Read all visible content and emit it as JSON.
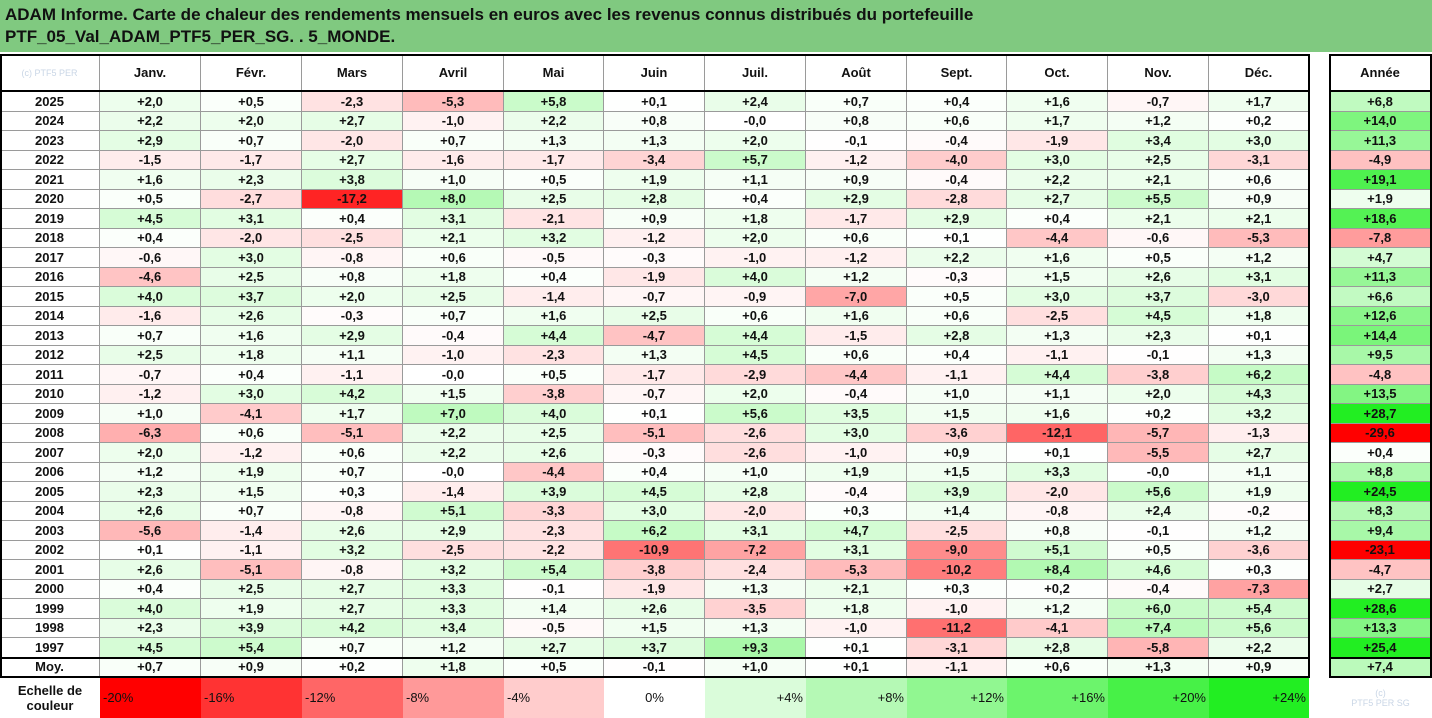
{
  "title_lines": [
    "ADAM Informe. Carte de chaleur des rendements mensuels en euros avec les revenus connus distribués du portefeuille",
    "PTF_05_Val_ADAM_PTF5_PER_SG. . 5_MONDE."
  ],
  "chart_data": {
    "type": "heatmap",
    "corner_watermark": "(c) PTF5 PER",
    "months": [
      "Janv.",
      "Févr.",
      "Mars",
      "Avril",
      "Mai",
      "Juin",
      "Juil.",
      "Août",
      "Sept.",
      "Oct.",
      "Nov.",
      "Déc."
    ],
    "year_column_label": "Année",
    "rows": [
      {
        "year": "2025",
        "values": [
          "+2,0",
          "+0,5",
          "-2,3",
          "-5,3",
          "+5,8",
          "+0,1",
          "+2,4",
          "+0,7",
          "+0,4",
          "+1,6",
          "-0,7",
          "+1,7"
        ],
        "annual": "+6,8"
      },
      {
        "year": "2024",
        "values": [
          "+2,2",
          "+2,0",
          "+2,7",
          "-1,0",
          "+2,2",
          "+0,8",
          "-0,0",
          "+0,8",
          "+0,6",
          "+1,7",
          "+1,2",
          "+0,2"
        ],
        "annual": "+14,0"
      },
      {
        "year": "2023",
        "values": [
          "+2,9",
          "+0,7",
          "-2,0",
          "+0,7",
          "+1,3",
          "+1,3",
          "+2,0",
          "-0,1",
          "-0,4",
          "-1,9",
          "+3,4",
          "+3,0"
        ],
        "annual": "+11,3"
      },
      {
        "year": "2022",
        "values": [
          "-1,5",
          "-1,7",
          "+2,7",
          "-1,6",
          "-1,7",
          "-3,4",
          "+5,7",
          "-1,2",
          "-4,0",
          "+3,0",
          "+2,5",
          "-3,1"
        ],
        "annual": "-4,9"
      },
      {
        "year": "2021",
        "values": [
          "+1,6",
          "+2,3",
          "+3,8",
          "+1,0",
          "+0,5",
          "+1,9",
          "+1,1",
          "+0,9",
          "-0,4",
          "+2,2",
          "+2,1",
          "+0,6"
        ],
        "annual": "+19,1"
      },
      {
        "year": "2020",
        "values": [
          "+0,5",
          "-2,7",
          "-17,2",
          "+8,0",
          "+2,5",
          "+2,8",
          "+0,4",
          "+2,9",
          "-2,8",
          "+2,7",
          "+5,5",
          "+0,9"
        ],
        "annual": "+1,9"
      },
      {
        "year": "2019",
        "values": [
          "+4,5",
          "+3,1",
          "+0,4",
          "+3,1",
          "-2,1",
          "+0,9",
          "+1,8",
          "-1,7",
          "+2,9",
          "+0,4",
          "+2,1",
          "+2,1"
        ],
        "annual": "+18,6"
      },
      {
        "year": "2018",
        "values": [
          "+0,4",
          "-2,0",
          "-2,5",
          "+2,1",
          "+3,2",
          "-1,2",
          "+2,0",
          "+0,6",
          "+0,1",
          "-4,4",
          "-0,6",
          "-5,3"
        ],
        "annual": "-7,8"
      },
      {
        "year": "2017",
        "values": [
          "-0,6",
          "+3,0",
          "-0,8",
          "+0,6",
          "-0,5",
          "-0,3",
          "-1,0",
          "-1,2",
          "+2,2",
          "+1,6",
          "+0,5",
          "+1,2"
        ],
        "annual": "+4,7"
      },
      {
        "year": "2016",
        "values": [
          "-4,6",
          "+2,5",
          "+0,8",
          "+1,8",
          "+0,4",
          "-1,9",
          "+4,0",
          "+1,2",
          "-0,3",
          "+1,5",
          "+2,6",
          "+3,1"
        ],
        "annual": "+11,3"
      },
      {
        "year": "2015",
        "values": [
          "+4,0",
          "+3,7",
          "+2,0",
          "+2,5",
          "-1,4",
          "-0,7",
          "-0,9",
          "-7,0",
          "+0,5",
          "+3,0",
          "+3,7",
          "-3,0"
        ],
        "annual": "+6,6"
      },
      {
        "year": "2014",
        "values": [
          "-1,6",
          "+2,6",
          "-0,3",
          "+0,7",
          "+1,6",
          "+2,5",
          "+0,6",
          "+1,6",
          "+0,6",
          "-2,5",
          "+4,5",
          "+1,8"
        ],
        "annual": "+12,6"
      },
      {
        "year": "2013",
        "values": [
          "+0,7",
          "+1,6",
          "+2,9",
          "-0,4",
          "+4,4",
          "-4,7",
          "+4,4",
          "-1,5",
          "+2,8",
          "+1,3",
          "+2,3",
          "+0,1"
        ],
        "annual": "+14,4"
      },
      {
        "year": "2012",
        "values": [
          "+2,5",
          "+1,8",
          "+1,1",
          "-1,0",
          "-2,3",
          "+1,3",
          "+4,5",
          "+0,6",
          "+0,4",
          "-1,1",
          "-0,1",
          "+1,3"
        ],
        "annual": "+9,5"
      },
      {
        "year": "2011",
        "values": [
          "-0,7",
          "+0,4",
          "-1,1",
          "-0,0",
          "+0,5",
          "-1,7",
          "-2,9",
          "-4,4",
          "-1,1",
          "+4,4",
          "-3,8",
          "+6,2"
        ],
        "annual": "-4,8"
      },
      {
        "year": "2010",
        "values": [
          "-1,2",
          "+3,0",
          "+4,2",
          "+1,5",
          "-3,8",
          "-0,7",
          "+2,0",
          "-0,4",
          "+1,0",
          "+1,1",
          "+2,0",
          "+4,3"
        ],
        "annual": "+13,5"
      },
      {
        "year": "2009",
        "values": [
          "+1,0",
          "-4,1",
          "+1,7",
          "+7,0",
          "+4,0",
          "+0,1",
          "+5,6",
          "+3,5",
          "+1,5",
          "+1,6",
          "+0,2",
          "+3,2"
        ],
        "annual": "+28,7"
      },
      {
        "year": "2008",
        "values": [
          "-6,3",
          "+0,6",
          "-5,1",
          "+2,2",
          "+2,5",
          "-5,1",
          "-2,6",
          "+3,0",
          "-3,6",
          "-12,1",
          "-5,7",
          "-1,3"
        ],
        "annual": "-29,6"
      },
      {
        "year": "2007",
        "values": [
          "+2,0",
          "-1,2",
          "+0,6",
          "+2,2",
          "+2,6",
          "-0,3",
          "-2,6",
          "-1,0",
          "+0,9",
          "+0,1",
          "-5,5",
          "+2,7"
        ],
        "annual": "+0,4"
      },
      {
        "year": "2006",
        "values": [
          "+1,2",
          "+1,9",
          "+0,7",
          "-0,0",
          "-4,4",
          "+0,4",
          "+1,0",
          "+1,9",
          "+1,5",
          "+3,3",
          "-0,0",
          "+1,1"
        ],
        "annual": "+8,8"
      },
      {
        "year": "2005",
        "values": [
          "+2,3",
          "+1,5",
          "+0,3",
          "-1,4",
          "+3,9",
          "+4,5",
          "+2,8",
          "-0,4",
          "+3,9",
          "-2,0",
          "+5,6",
          "+1,9"
        ],
        "annual": "+24,5"
      },
      {
        "year": "2004",
        "values": [
          "+2,6",
          "+0,7",
          "-0,8",
          "+5,1",
          "-3,3",
          "+3,0",
          "-2,0",
          "+0,3",
          "+1,4",
          "-0,8",
          "+2,4",
          "-0,2"
        ],
        "annual": "+8,3"
      },
      {
        "year": "2003",
        "values": [
          "-5,6",
          "-1,4",
          "+2,6",
          "+2,9",
          "-2,3",
          "+6,2",
          "+3,1",
          "+4,7",
          "-2,5",
          "+0,8",
          "-0,1",
          "+1,2"
        ],
        "annual": "+9,4"
      },
      {
        "year": "2002",
        "values": [
          "+0,1",
          "-1,1",
          "+3,2",
          "-2,5",
          "-2,2",
          "-10,9",
          "-7,2",
          "+3,1",
          "-9,0",
          "+5,1",
          "+0,5",
          "-3,6"
        ],
        "annual": "-23,1"
      },
      {
        "year": "2001",
        "values": [
          "+2,6",
          "-5,1",
          "-0,8",
          "+3,2",
          "+5,4",
          "-3,8",
          "-2,4",
          "-5,3",
          "-10,2",
          "+8,4",
          "+4,6",
          "+0,3"
        ],
        "annual": "-4,7"
      },
      {
        "year": "2000",
        "values": [
          "+0,4",
          "+2,5",
          "+2,7",
          "+3,3",
          "-0,1",
          "-1,9",
          "+1,3",
          "+2,1",
          "+0,3",
          "+0,2",
          "-0,4",
          "-7,3"
        ],
        "annual": "+2,7"
      },
      {
        "year": "1999",
        "values": [
          "+4,0",
          "+1,9",
          "+2,7",
          "+3,3",
          "+1,4",
          "+2,6",
          "-3,5",
          "+1,8",
          "-1,0",
          "+1,2",
          "+6,0",
          "+5,4"
        ],
        "annual": "+28,6"
      },
      {
        "year": "1998",
        "values": [
          "+2,3",
          "+3,9",
          "+4,2",
          "+3,4",
          "-0,5",
          "+1,5",
          "+1,3",
          "-1,0",
          "-11,2",
          "-4,1",
          "+7,4",
          "+5,6"
        ],
        "annual": "+13,3"
      },
      {
        "year": "1997",
        "values": [
          "+4,5",
          "+5,4",
          "+0,7",
          "+1,2",
          "+2,7",
          "+3,7",
          "+9,3",
          "+0,1",
          "-3,1",
          "+2,8",
          "-5,8",
          "+2,2"
        ],
        "annual": "+25,4"
      }
    ],
    "average": {
      "label": "Moy.",
      "values": [
        "+0,7",
        "+0,9",
        "+0,2",
        "+1,8",
        "+0,5",
        "-0,1",
        "+1,0",
        "+0,1",
        "-1,1",
        "+0,6",
        "+1,3",
        "+0,9"
      ],
      "annual": "+7,4"
    },
    "scale": {
      "label_lines": [
        "Echelle de",
        "couleur"
      ],
      "steps": [
        {
          "label": "-20%",
          "value": -20
        },
        {
          "label": "-16%",
          "value": -16
        },
        {
          "label": "-12%",
          "value": -12
        },
        {
          "label": "-8%",
          "value": -8
        },
        {
          "label": "-4%",
          "value": -4
        },
        {
          "label": "0%",
          "value": 0
        },
        {
          "label": "+4%",
          "value": 4
        },
        {
          "label": "+8%",
          "value": 8
        },
        {
          "label": "+12%",
          "value": 12
        },
        {
          "label": "+16%",
          "value": 16
        },
        {
          "label": "+20%",
          "value": 20
        },
        {
          "label": "+24%",
          "value": 24
        }
      ],
      "watermark_lines": [
        "(c)",
        "PTF5 PER SG"
      ]
    },
    "colors": {
      "title_background": "#80c980",
      "negative_full": "#ff0000",
      "positive_full": "#22ee22",
      "neutral": "#ffffff"
    },
    "color_scale_range": [
      -20,
      24
    ]
  }
}
